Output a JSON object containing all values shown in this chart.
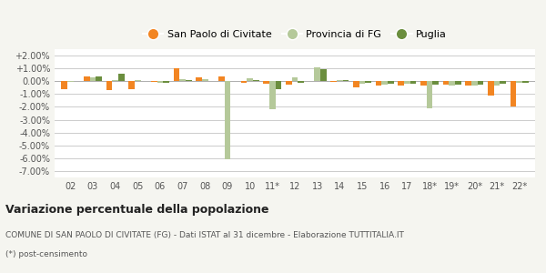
{
  "categories": [
    "02",
    "03",
    "04",
    "05",
    "06",
    "07",
    "08",
    "09",
    "10",
    "11*",
    "12",
    "13",
    "14",
    "15",
    "16",
    "17",
    "18*",
    "19*",
    "20*",
    "21*",
    "22*"
  ],
  "san_paolo": [
    -0.65,
    0.4,
    -0.7,
    -0.65,
    -0.05,
    1.0,
    0.3,
    0.4,
    -0.1,
    -0.2,
    -0.25,
    0.05,
    -0.05,
    -0.45,
    -0.35,
    -0.35,
    -0.35,
    -0.3,
    -0.35,
    -1.1,
    -1.95
  ],
  "provincia_fg": [
    -0.05,
    0.3,
    0.1,
    0.1,
    -0.1,
    0.15,
    0.15,
    -6.1,
    0.2,
    -2.2,
    0.3,
    1.05,
    0.1,
    -0.2,
    -0.25,
    -0.2,
    -2.1,
    -0.35,
    -0.35,
    -0.35,
    -0.1
  ],
  "puglia": [
    0.05,
    0.35,
    0.6,
    0.05,
    -0.15,
    0.1,
    0.05,
    0.05,
    0.1,
    -0.65,
    -0.1,
    0.95,
    0.1,
    -0.15,
    -0.2,
    -0.2,
    -0.3,
    -0.3,
    -0.3,
    -0.2,
    -0.15
  ],
  "color_san_paolo": "#f28522",
  "color_provincia": "#b5c99a",
  "color_puglia": "#6b8e3e",
  "title": "Variazione percentuale della popolazione",
  "subtitle": "COMUNE DI SAN PAOLO DI CIVITATE (FG) - Dati ISTAT al 31 dicembre - Elaborazione TUTTITALIA.IT",
  "footnote": "(*) post-censimento",
  "legend_labels": [
    "San Paolo di Civitate",
    "Provincia di FG",
    "Puglia"
  ],
  "ylim_min": -7.5,
  "ylim_max": 2.5,
  "yticks": [
    2.0,
    1.0,
    0.0,
    -1.0,
    -2.0,
    -3.0,
    -4.0,
    -5.0,
    -6.0,
    -7.0
  ],
  "bg_color": "#f5f5f0",
  "plot_bg": "#ffffff",
  "grid_color": "#cccccc"
}
